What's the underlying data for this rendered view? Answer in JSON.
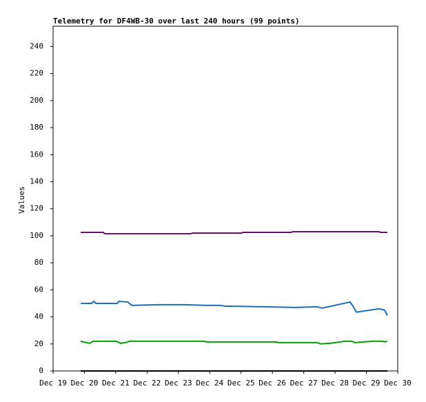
{
  "chart_data": {
    "type": "line",
    "title": "Telemetry for DF4WB-30 over last 240 hours (99 points)",
    "y_label": "Values",
    "xlim": [
      19,
      30
    ],
    "xticks": [
      {
        "value": 19,
        "label": "Dec 19"
      },
      {
        "value": 20,
        "label": "Dec 20"
      },
      {
        "value": 21,
        "label": "Dec 21"
      },
      {
        "value": 22,
        "label": "Dec 22"
      },
      {
        "value": 23,
        "label": "Dec 23"
      },
      {
        "value": 24,
        "label": "Dec 24"
      },
      {
        "value": 25,
        "label": "Dec 25"
      },
      {
        "value": 26,
        "label": "Dec 26"
      },
      {
        "value": 27,
        "label": "Dec 27"
      },
      {
        "value": 28,
        "label": "Dec 28"
      },
      {
        "value": 29,
        "label": "Dec 29"
      },
      {
        "value": 30,
        "label": "Dec 30"
      }
    ],
    "ylim": [
      0,
      255
    ],
    "yticks": [
      0,
      20,
      40,
      60,
      80,
      100,
      120,
      140,
      160,
      180,
      200,
      220,
      240
    ],
    "grid": false,
    "series": [
      {
        "color": "#6a0f6a",
        "x": [
          19.88,
          20.6,
          20.65,
          23.4,
          23.45,
          25.0,
          25.05,
          26.6,
          26.65,
          29.4,
          29.45,
          29.67
        ],
        "values": [
          102.5,
          102.5,
          101.5,
          101.5,
          102,
          102,
          102.5,
          102.5,
          103,
          103,
          102.5,
          102.5
        ]
      },
      {
        "color": "#1a6fbf",
        "x": [
          19.88,
          20.23,
          20.3,
          20.36,
          21.05,
          21.09,
          21.38,
          21.51,
          22.37,
          23.2,
          23.91,
          24.35,
          24.46,
          25.67,
          26.77,
          27.43,
          27.58,
          28.48,
          28.57,
          28.68,
          29.41,
          29.58,
          29.67
        ],
        "values": [
          50,
          50,
          51.5,
          50,
          50,
          51.5,
          51,
          48.5,
          49,
          49,
          48.5,
          48.5,
          48,
          47.5,
          47,
          47.5,
          46.5,
          51,
          48,
          43.5,
          46,
          45,
          41
        ]
      },
      {
        "color": "#00a000",
        "x": [
          19.88,
          20.06,
          20.17,
          20.28,
          21.0,
          21.16,
          21.31,
          21.44,
          23.8,
          23.91,
          26.11,
          26.22,
          27.43,
          27.54,
          27.87,
          28.31,
          28.53,
          28.64,
          29.19,
          29.52,
          29.58,
          29.67
        ],
        "values": [
          22,
          21,
          20.5,
          22,
          22,
          20.5,
          21,
          22,
          22,
          21.5,
          21.5,
          21,
          21,
          20,
          20.5,
          22,
          22,
          21,
          22,
          22,
          21.5,
          22
        ]
      },
      {
        "color": "#000000",
        "x": [
          19.88,
          29.67
        ],
        "values": [
          0,
          0
        ]
      }
    ]
  }
}
